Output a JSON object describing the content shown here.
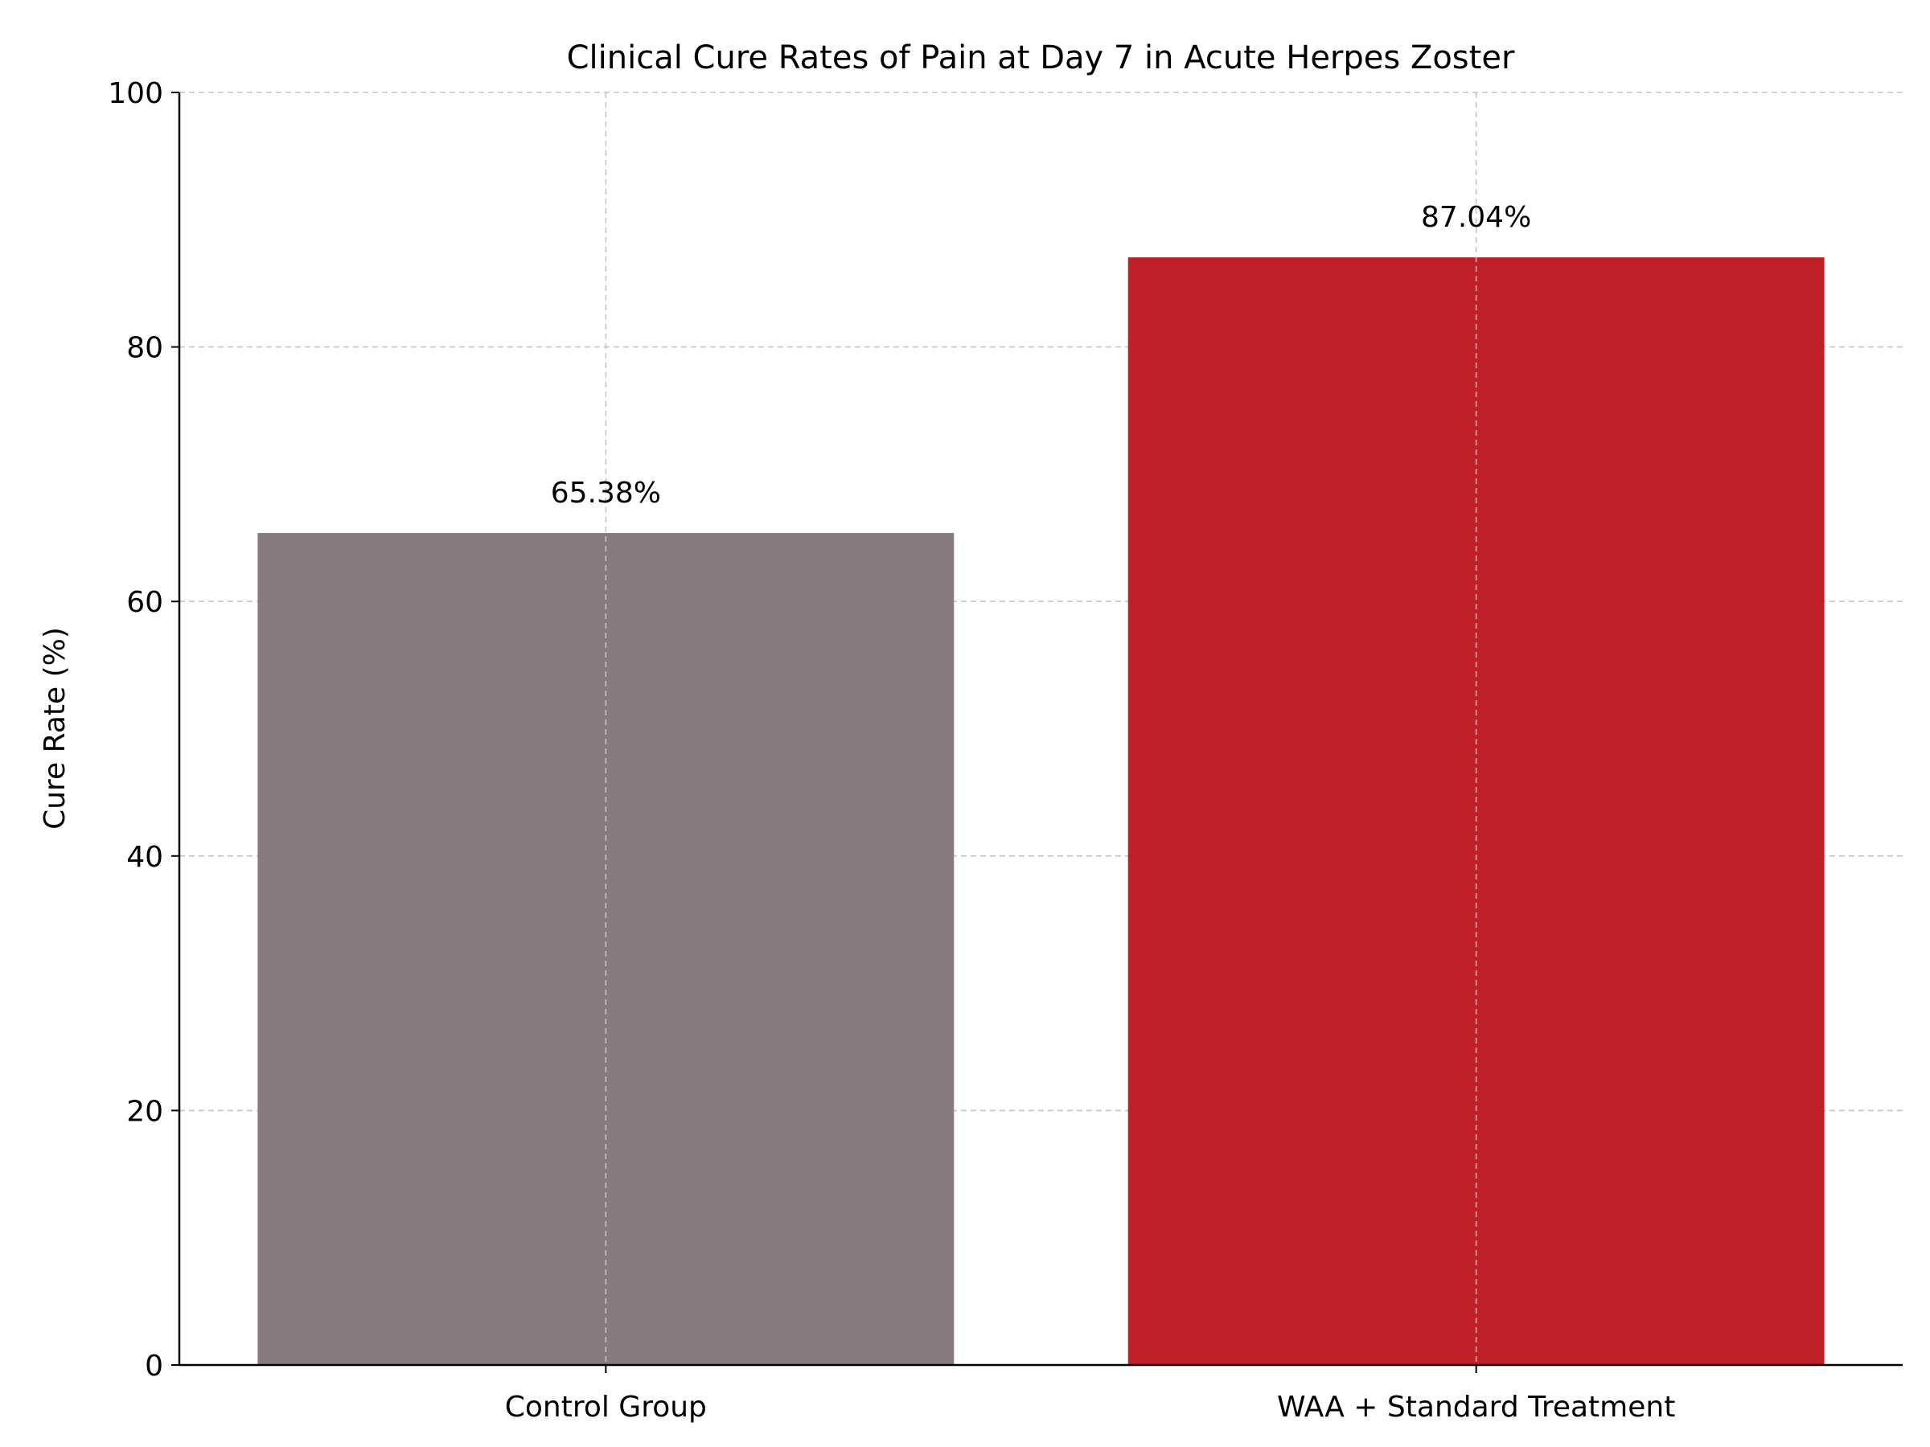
{
  "chart_data": {
    "type": "bar",
    "title": "Clinical Cure Rates of Pain at Day 7 in Acute Herpes Zoster",
    "xlabel": "",
    "ylabel": "Cure Rate (%)",
    "categories": [
      "Control Group",
      "WAA + Standard Treatment"
    ],
    "values": [
      65.38,
      87.04
    ],
    "data_labels": [
      "65.38%",
      "87.04%"
    ],
    "colors": [
      "#877b7f",
      "#bf2028"
    ],
    "ylim": [
      0,
      100
    ],
    "yticks": [
      0,
      20,
      40,
      60,
      80,
      100
    ],
    "ytick_labels": [
      "0",
      "20",
      "40",
      "60",
      "80",
      "100"
    ],
    "grid": true,
    "grid_style": "dashed",
    "legend": "none"
  }
}
